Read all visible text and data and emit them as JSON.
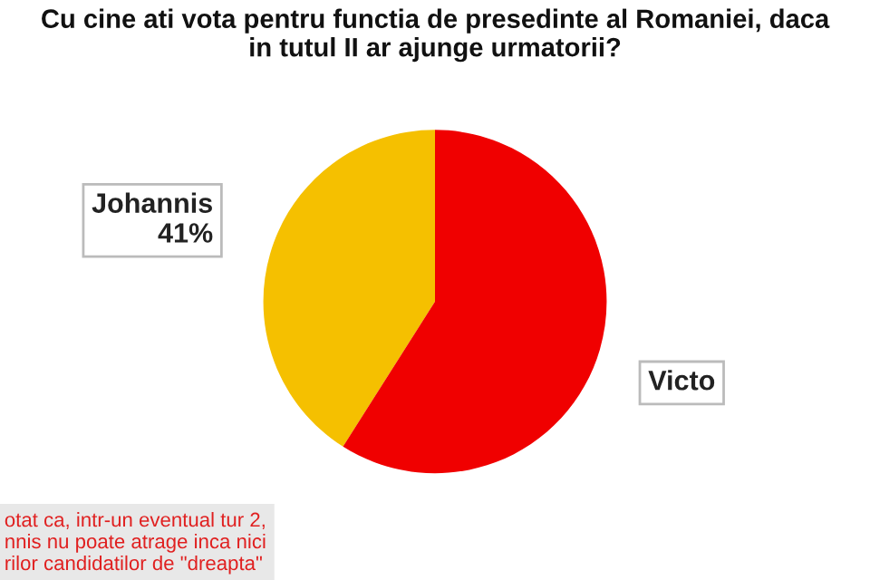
{
  "chart_data": {
    "type": "pie",
    "title": "Cu cine ati vota pentru functia de presedinte al Romaniei, daca\nin tutul II ar ajunge urmatorii?",
    "categories": [
      "Johannis",
      "Victo"
    ],
    "values": [
      41,
      59
    ],
    "colors": [
      "#f5c000",
      "#f00000"
    ],
    "value_labels": [
      "41%",
      null
    ],
    "annotations": [
      "otat ca, intr-un eventual tur 2,\nnnis nu poate atrage inca nici\nrilor candidatilor de \"dreapta\""
    ],
    "legend": false
  }
}
